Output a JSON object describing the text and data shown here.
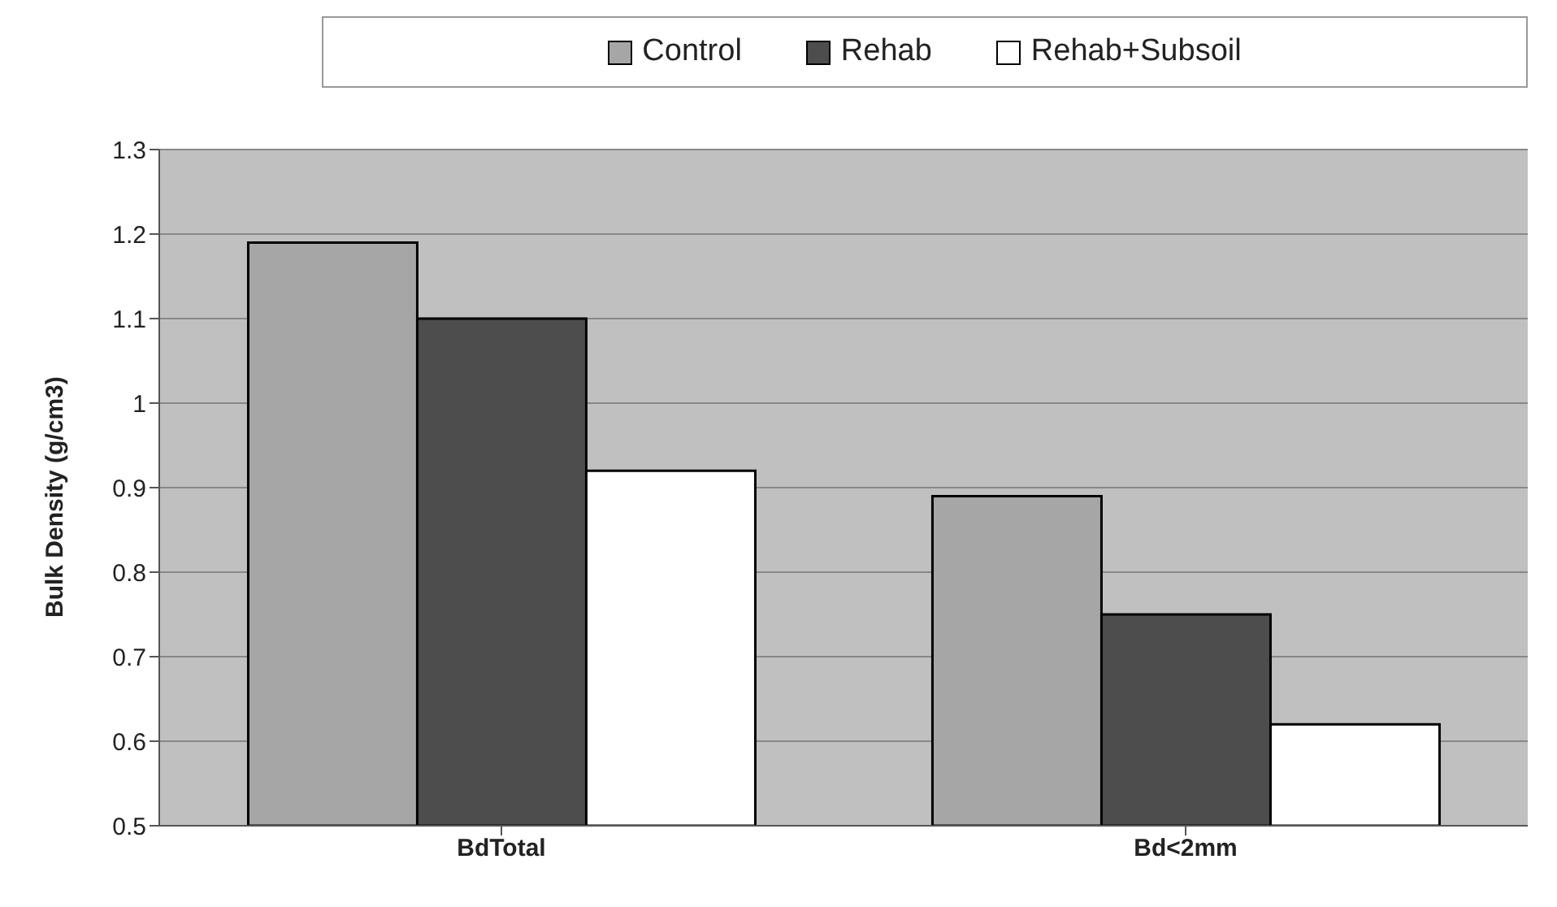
{
  "chart_data": {
    "type": "bar",
    "ylabel": "Bulk Density (g/cm3)",
    "categories": [
      "BdTotal",
      "Bd<2mm"
    ],
    "series": [
      {
        "name": "Control",
        "color": "#a6a6a6",
        "values": [
          1.19,
          0.89
        ]
      },
      {
        "name": "Rehab",
        "color": "#4d4d4d",
        "values": [
          1.1,
          0.75
        ]
      },
      {
        "name": "Rehab+Subsoil",
        "color": "#ffffff",
        "values": [
          0.92,
          0.62
        ]
      }
    ],
    "ylim": [
      0.5,
      1.3
    ],
    "yticks": [
      0.5,
      0.6,
      0.7,
      0.8,
      0.9,
      1,
      1.1,
      1.2,
      1.3
    ],
    "grid": "y",
    "legend": "top"
  }
}
